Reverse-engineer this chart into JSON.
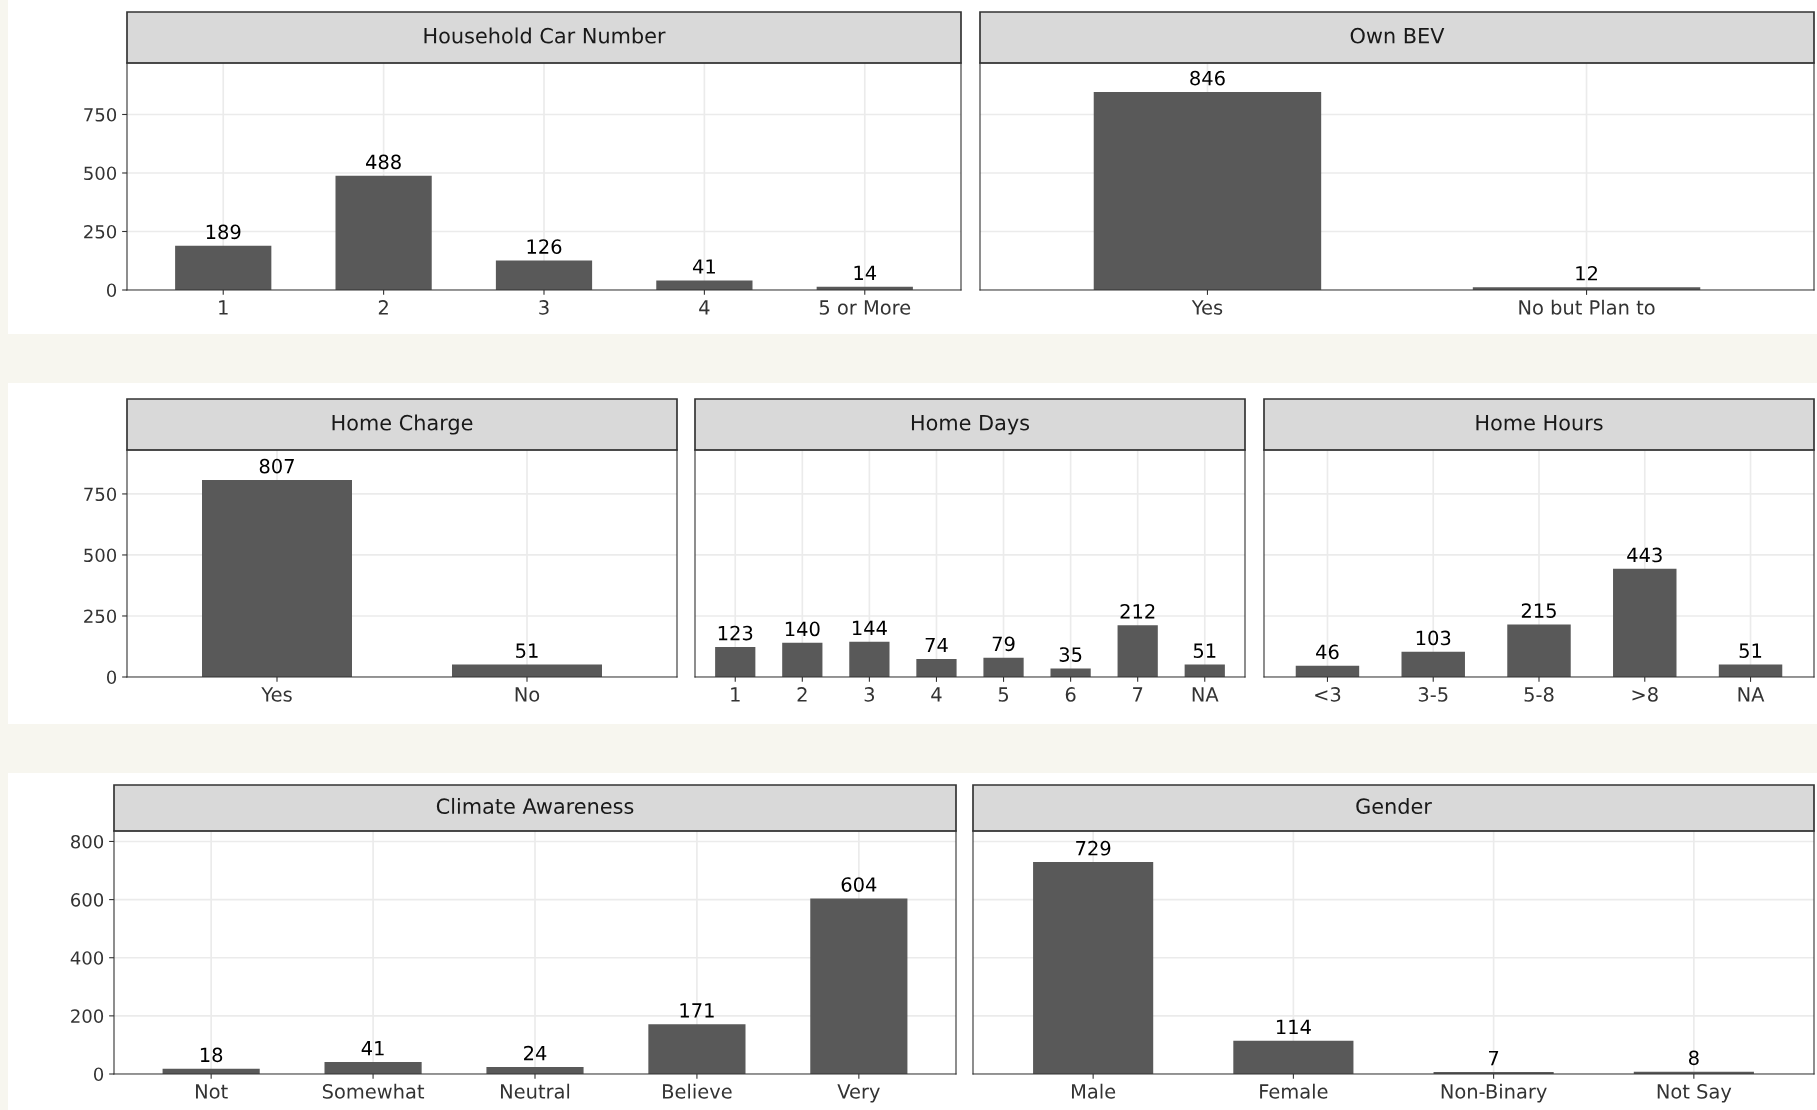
{
  "chart_data": [
    {
      "type": "bar",
      "title": "Household Car Number",
      "categories": [
        "1",
        "2",
        "3",
        "4",
        "5 or More"
      ],
      "values": [
        189,
        488,
        126,
        41,
        14
      ],
      "color": "#595959",
      "ylim": [
        0,
        970
      ],
      "yticks": [
        0,
        250,
        500,
        750
      ],
      "grid": true,
      "data_labels": true
    },
    {
      "type": "bar",
      "title": "Own BEV",
      "categories": [
        "Yes",
        "No but Plan to"
      ],
      "values": [
        846,
        12
      ],
      "color": "#595959",
      "ylim": [
        0,
        970
      ],
      "yticks": [
        0,
        250,
        500,
        750
      ],
      "grid": true,
      "data_labels": true,
      "tick_labels": "x"
    },
    {
      "type": "bar",
      "title": "Home Charge",
      "categories": [
        "Yes",
        "No"
      ],
      "values": [
        807,
        51
      ],
      "color": "#595959",
      "ylim": [
        0,
        930
      ],
      "yticks": [
        0,
        250,
        500,
        750
      ],
      "grid": true,
      "data_labels": true
    },
    {
      "type": "bar",
      "title": "Home Days",
      "categories": [
        "1",
        "2",
        "3",
        "4",
        "5",
        "6",
        "7",
        "NA"
      ],
      "values": [
        123,
        140,
        144,
        74,
        79,
        35,
        212,
        51
      ],
      "color": "#595959",
      "ylim": [
        0,
        930
      ],
      "yticks": [
        0,
        250,
        500,
        750
      ],
      "grid": true,
      "data_labels": true,
      "tick_labels": "x"
    },
    {
      "type": "bar",
      "title": "Home Hours",
      "categories": [
        "<3",
        "3-5",
        "5-8",
        ">8",
        "NA"
      ],
      "values": [
        46,
        103,
        215,
        443,
        51
      ],
      "color": "#595959",
      "ylim": [
        0,
        930
      ],
      "yticks": [
        0,
        250,
        500,
        750
      ],
      "grid": true,
      "data_labels": true,
      "tick_labels": "x"
    },
    {
      "type": "bar",
      "title": "Climate Awareness",
      "categories": [
        "Not",
        "Somewhat",
        "Neutral",
        "Believe",
        "Very"
      ],
      "values": [
        18,
        41,
        24,
        171,
        604
      ],
      "color": "#595959",
      "ylim": [
        0,
        836
      ],
      "yticks": [
        0,
        200,
        400,
        600,
        800
      ],
      "grid": true,
      "data_labels": true
    },
    {
      "type": "bar",
      "title": "Gender",
      "categories": [
        "Male",
        "Female",
        "Non-Binary",
        "Not Say"
      ],
      "values": [
        729,
        114,
        7,
        8
      ],
      "color": "#595959",
      "ylim": [
        0,
        836
      ],
      "yticks": [
        0,
        200,
        400,
        600,
        800
      ],
      "grid": true,
      "data_labels": true,
      "tick_labels": "x"
    }
  ]
}
